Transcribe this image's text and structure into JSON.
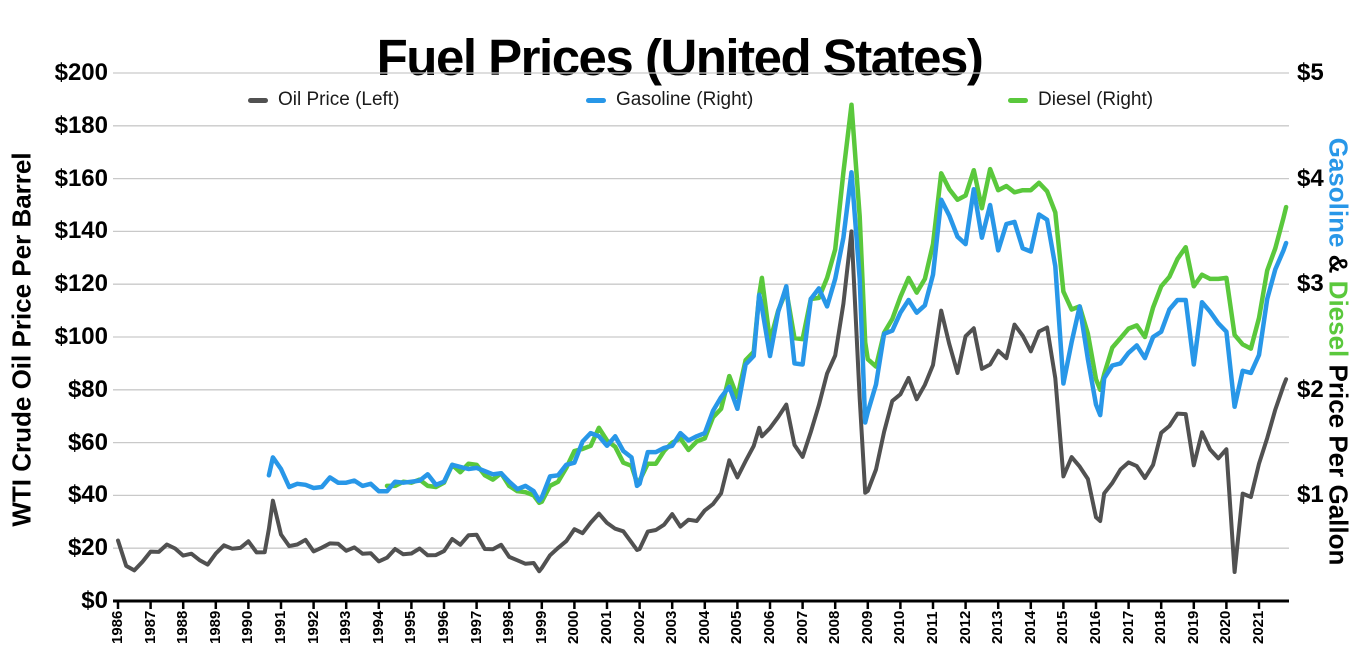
{
  "page": {
    "title": "Fuel Prices (United States)"
  },
  "colors": {
    "background": "#ffffff",
    "oil": "#515151",
    "gasoline": "#2897e8",
    "diesel": "#5ac83c",
    "gridline": "#c9c9c9",
    "axis_line": "#000000",
    "text": "#000000"
  },
  "legend": {
    "items": [
      {
        "label": "Oil Price (Left)",
        "color": "#515151"
      },
      {
        "label": "Gasoline (Right)",
        "color": "#2897e8"
      },
      {
        "label": "Diesel (Right)",
        "color": "#5ac83c"
      }
    ]
  },
  "axes": {
    "left": {
      "title": "WTI Crude Oil Price Per Barrel",
      "tick_labels": [
        "$200",
        "$180",
        "$160",
        "$140",
        "$120",
        "$100",
        "$80",
        "$60",
        "$40",
        "$20",
        "$0"
      ],
      "tick_values": [
        200,
        180,
        160,
        140,
        120,
        100,
        80,
        60,
        40,
        20,
        0
      ]
    },
    "right": {
      "title_parts": [
        {
          "text": "Gasoline",
          "color": "#2897e8"
        },
        {
          "text": " & ",
          "color": "#000000"
        },
        {
          "text": "Diesel",
          "color": "#5ac83c"
        },
        {
          "text": " Price Per Gallon",
          "color": "#000000"
        }
      ],
      "tick_labels": [
        "$5",
        "$4",
        "$3",
        "$2",
        "$1"
      ],
      "tick_values": [
        5,
        4,
        3,
        2,
        1
      ]
    },
    "x": {
      "tick_labels": [
        "1986",
        "1987",
        "1988",
        "1989",
        "1990",
        "1991",
        "1992",
        "1993",
        "1994",
        "1995",
        "1996",
        "1997",
        "1998",
        "1999",
        "2000",
        "2001",
        "2002",
        "2003",
        "2004",
        "2005",
        "2006",
        "2007",
        "2008",
        "2009",
        "2010",
        "2011",
        "2012",
        "2013",
        "2014",
        "2015",
        "2016",
        "2017",
        "2018",
        "2019",
        "2020",
        "2021"
      ]
    }
  },
  "chart_data": {
    "type": "line",
    "title": "Fuel Prices (United States)",
    "xlabel": "",
    "ylabel_left": "WTI Crude Oil Price Per Barrel",
    "ylabel_right": "Gasoline & Diesel Price Per Gallon",
    "x_format": "decimal_year",
    "x_range": [
      1986,
      2021.92
    ],
    "left_axis_range": [
      0,
      200
    ],
    "right_axis_range": [
      0,
      5
    ],
    "grid": true,
    "legend_position": "top",
    "series": [
      {
        "name": "Oil Price (Left)",
        "axis": "left",
        "color": "#515151",
        "column": 1,
        "unit": "$/barrel"
      },
      {
        "name": "Gasoline (Right)",
        "axis": "right",
        "color": "#2897e8",
        "column": 2,
        "unit": "$/gallon"
      },
      {
        "name": "Diesel (Right)",
        "axis": "right",
        "color": "#5ac83c",
        "column": 3,
        "unit": "$/gallon"
      }
    ],
    "rows": [
      [
        1986.0,
        22.9,
        null,
        null
      ],
      [
        1986.25,
        13.3,
        null,
        null
      ],
      [
        1986.5,
        11.6,
        null,
        null
      ],
      [
        1986.75,
        14.9,
        null,
        null
      ],
      [
        1987.0,
        18.7,
        null,
        null
      ],
      [
        1987.25,
        18.6,
        null,
        null
      ],
      [
        1987.5,
        21.4,
        null,
        null
      ],
      [
        1987.75,
        19.9,
        null,
        null
      ],
      [
        1988.0,
        17.2,
        null,
        null
      ],
      [
        1988.25,
        17.9,
        null,
        null
      ],
      [
        1988.5,
        15.5,
        null,
        null
      ],
      [
        1988.75,
        13.8,
        null,
        null
      ],
      [
        1989.0,
        18.0,
        null,
        null
      ],
      [
        1989.25,
        21.1,
        null,
        null
      ],
      [
        1989.5,
        19.8,
        null,
        null
      ],
      [
        1989.75,
        20.1,
        null,
        null
      ],
      [
        1990.0,
        22.6,
        null,
        null
      ],
      [
        1990.25,
        18.4,
        null,
        null
      ],
      [
        1990.5,
        18.5,
        null,
        null
      ],
      [
        1990.63,
        27.3,
        1.19,
        null
      ],
      [
        1990.75,
        38.0,
        1.36,
        null
      ],
      [
        1991.0,
        25.2,
        1.25,
        null
      ],
      [
        1991.25,
        20.8,
        1.08,
        null
      ],
      [
        1991.5,
        21.4,
        1.11,
        null
      ],
      [
        1991.75,
        23.2,
        1.1,
        null
      ],
      [
        1992.0,
        18.8,
        1.07,
        null
      ],
      [
        1992.25,
        20.2,
        1.08,
        null
      ],
      [
        1992.5,
        21.8,
        1.17,
        null
      ],
      [
        1992.75,
        21.7,
        1.12,
        null
      ],
      [
        1993.0,
        19.0,
        1.12,
        null
      ],
      [
        1993.25,
        20.3,
        1.14,
        null
      ],
      [
        1993.5,
        17.9,
        1.09,
        null
      ],
      [
        1993.75,
        18.1,
        1.11,
        null
      ],
      [
        1994.0,
        15.0,
        1.04,
        null
      ],
      [
        1994.25,
        16.4,
        1.04,
        1.09
      ],
      [
        1994.5,
        19.7,
        1.13,
        1.09
      ],
      [
        1994.75,
        17.7,
        1.12,
        1.13
      ],
      [
        1995.0,
        18.0,
        1.13,
        1.12
      ],
      [
        1995.25,
        19.9,
        1.14,
        1.15
      ],
      [
        1995.5,
        17.3,
        1.2,
        1.09
      ],
      [
        1995.75,
        17.4,
        1.1,
        1.08
      ],
      [
        1996.0,
        18.9,
        1.13,
        1.12
      ],
      [
        1996.25,
        23.5,
        1.29,
        1.29
      ],
      [
        1996.5,
        21.3,
        1.27,
        1.22
      ],
      [
        1996.75,
        24.9,
        1.25,
        1.3
      ],
      [
        1997.0,
        25.1,
        1.26,
        1.29
      ],
      [
        1997.25,
        19.7,
        1.23,
        1.19
      ],
      [
        1997.5,
        19.6,
        1.2,
        1.15
      ],
      [
        1997.75,
        21.3,
        1.21,
        1.21
      ],
      [
        1998.0,
        16.7,
        1.13,
        1.09
      ],
      [
        1998.25,
        15.4,
        1.06,
        1.04
      ],
      [
        1998.5,
        14.1,
        1.09,
        1.03
      ],
      [
        1998.75,
        14.4,
        1.04,
        1.0
      ],
      [
        1998.92,
        11.3,
        0.95,
        0.93
      ],
      [
        1999.0,
        12.5,
        0.98,
        0.94
      ],
      [
        1999.25,
        17.3,
        1.18,
        1.09
      ],
      [
        1999.5,
        20.1,
        1.19,
        1.13
      ],
      [
        1999.75,
        22.7,
        1.29,
        1.26
      ],
      [
        2000.0,
        27.2,
        1.31,
        1.42
      ],
      [
        2000.25,
        25.7,
        1.51,
        1.44
      ],
      [
        2000.5,
        29.7,
        1.59,
        1.47
      ],
      [
        2000.75,
        33.1,
        1.56,
        1.64
      ],
      [
        2001.0,
        29.6,
        1.47,
        1.52
      ],
      [
        2001.25,
        27.4,
        1.56,
        1.46
      ],
      [
        2001.5,
        26.4,
        1.42,
        1.31
      ],
      [
        2001.75,
        22.2,
        1.36,
        1.28
      ],
      [
        2001.92,
        19.3,
        1.09,
        1.12
      ],
      [
        2002.0,
        19.7,
        1.11,
        1.14
      ],
      [
        2002.25,
        26.3,
        1.41,
        1.3
      ],
      [
        2002.5,
        26.9,
        1.41,
        1.3
      ],
      [
        2002.75,
        28.9,
        1.45,
        1.42
      ],
      [
        2003.0,
        32.9,
        1.47,
        1.5
      ],
      [
        2003.25,
        28.2,
        1.59,
        1.54
      ],
      [
        2003.5,
        30.8,
        1.52,
        1.43
      ],
      [
        2003.75,
        30.3,
        1.56,
        1.51
      ],
      [
        2004.0,
        34.3,
        1.59,
        1.54
      ],
      [
        2004.25,
        36.7,
        1.8,
        1.74
      ],
      [
        2004.5,
        40.8,
        1.93,
        1.82
      ],
      [
        2004.75,
        53.3,
        2.03,
        2.13
      ],
      [
        2005.0,
        46.8,
        1.82,
        1.93
      ],
      [
        2005.25,
        53.0,
        2.24,
        2.28
      ],
      [
        2005.5,
        58.7,
        2.32,
        2.36
      ],
      [
        2005.67,
        65.6,
        2.9,
        2.9
      ],
      [
        2005.75,
        62.4,
        2.78,
        3.06
      ],
      [
        2006.0,
        65.5,
        2.32,
        2.46
      ],
      [
        2006.25,
        69.7,
        2.74,
        2.75
      ],
      [
        2006.5,
        74.4,
        2.98,
        2.94
      ],
      [
        2006.75,
        59.1,
        2.25,
        2.49
      ],
      [
        2007.0,
        54.6,
        2.24,
        2.48
      ],
      [
        2007.25,
        64.0,
        2.86,
        2.86
      ],
      [
        2007.5,
        74.2,
        2.96,
        2.87
      ],
      [
        2007.75,
        86.2,
        2.79,
        3.06
      ],
      [
        2008.0,
        93.0,
        3.05,
        3.33
      ],
      [
        2008.25,
        112.6,
        3.44,
        4.06
      ],
      [
        2008.5,
        140.0,
        4.06,
        4.7
      ],
      [
        2008.75,
        76.7,
        3.05,
        3.64
      ],
      [
        2008.92,
        41.0,
        1.69,
        2.45
      ],
      [
        2009.0,
        41.7,
        1.79,
        2.29
      ],
      [
        2009.25,
        49.8,
        2.05,
        2.22
      ],
      [
        2009.5,
        64.1,
        2.53,
        2.54
      ],
      [
        2009.75,
        75.8,
        2.56,
        2.67
      ],
      [
        2010.0,
        78.3,
        2.73,
        2.88
      ],
      [
        2010.25,
        84.5,
        2.85,
        3.06
      ],
      [
        2010.5,
        76.4,
        2.73,
        2.92
      ],
      [
        2010.75,
        81.9,
        2.8,
        3.05
      ],
      [
        2011.0,
        89.4,
        3.09,
        3.38
      ],
      [
        2011.25,
        110.0,
        3.8,
        4.05
      ],
      [
        2011.5,
        97.3,
        3.65,
        3.9
      ],
      [
        2011.75,
        86.4,
        3.45,
        3.8
      ],
      [
        2012.0,
        100.3,
        3.38,
        3.84
      ],
      [
        2012.25,
        103.3,
        3.9,
        4.08
      ],
      [
        2012.5,
        87.9,
        3.44,
        3.72
      ],
      [
        2012.75,
        89.6,
        3.75,
        4.09
      ],
      [
        2013.0,
        94.8,
        3.32,
        3.89
      ],
      [
        2013.25,
        92.0,
        3.57,
        3.93
      ],
      [
        2013.5,
        104.7,
        3.59,
        3.87
      ],
      [
        2013.75,
        100.5,
        3.34,
        3.89
      ],
      [
        2014.0,
        94.6,
        3.31,
        3.89
      ],
      [
        2014.25,
        102.1,
        3.66,
        3.96
      ],
      [
        2014.5,
        103.6,
        3.61,
        3.88
      ],
      [
        2014.75,
        84.4,
        3.17,
        3.68
      ],
      [
        2015.0,
        47.2,
        2.06,
        2.93
      ],
      [
        2015.25,
        54.5,
        2.45,
        2.76
      ],
      [
        2015.5,
        50.9,
        2.79,
        2.79
      ],
      [
        2015.75,
        46.2,
        2.29,
        2.53
      ],
      [
        2016.0,
        31.7,
        1.86,
        2.1
      ],
      [
        2016.13,
        30.3,
        1.76,
        2.0
      ],
      [
        2016.25,
        40.8,
        2.11,
        2.15
      ],
      [
        2016.5,
        44.7,
        2.23,
        2.4
      ],
      [
        2016.75,
        49.8,
        2.25,
        2.49
      ],
      [
        2017.0,
        52.5,
        2.35,
        2.58
      ],
      [
        2017.25,
        51.1,
        2.42,
        2.61
      ],
      [
        2017.5,
        46.6,
        2.3,
        2.5
      ],
      [
        2017.75,
        51.6,
        2.5,
        2.78
      ],
      [
        2018.0,
        63.7,
        2.55,
        2.98
      ],
      [
        2018.25,
        66.3,
        2.76,
        3.07
      ],
      [
        2018.5,
        71.0,
        2.85,
        3.24
      ],
      [
        2018.75,
        70.8,
        2.85,
        3.35
      ],
      [
        2019.0,
        51.4,
        2.24,
        2.98
      ],
      [
        2019.25,
        63.9,
        2.83,
        3.09
      ],
      [
        2019.5,
        57.4,
        2.74,
        3.05
      ],
      [
        2019.75,
        54.0,
        2.63,
        3.05
      ],
      [
        2020.0,
        57.5,
        2.55,
        3.06
      ],
      [
        2020.25,
        11.0,
        1.84,
        2.52
      ],
      [
        2020.5,
        40.7,
        2.18,
        2.43
      ],
      [
        2020.75,
        39.4,
        2.16,
        2.39
      ],
      [
        2021.0,
        52.0,
        2.33,
        2.68
      ],
      [
        2021.25,
        61.7,
        2.86,
        3.13
      ],
      [
        2021.5,
        72.5,
        3.14,
        3.34
      ],
      [
        2021.75,
        81.5,
        3.32,
        3.63
      ],
      [
        2021.83,
        84.0,
        3.39,
        3.73
      ]
    ]
  }
}
